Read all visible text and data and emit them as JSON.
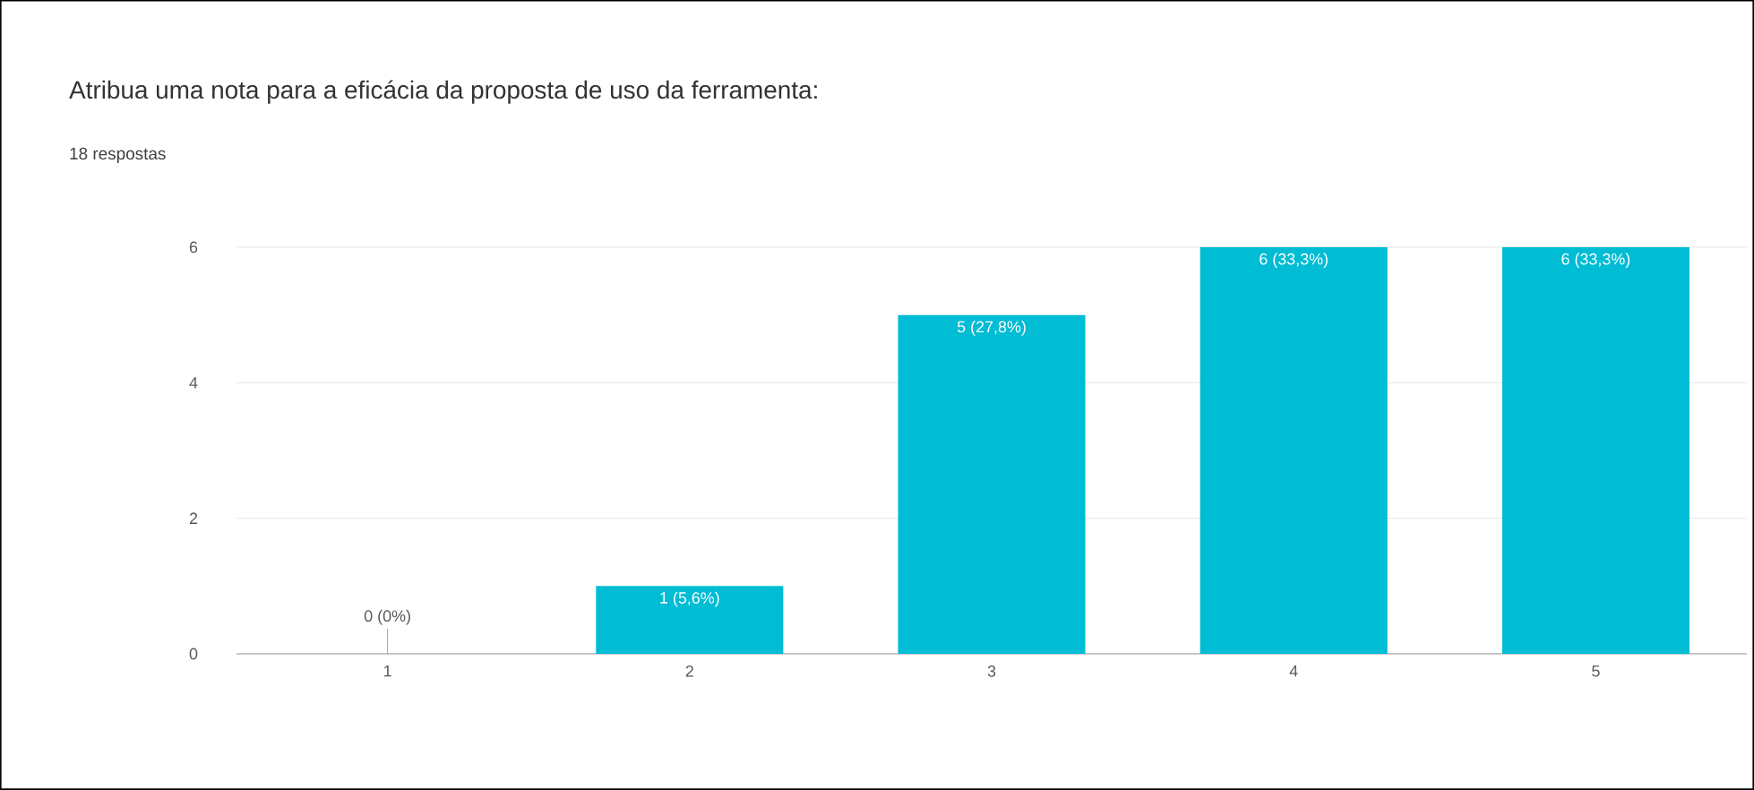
{
  "chart_data": {
    "type": "bar",
    "title": "Atribua uma nota para a eficácia da proposta de uso da ferramenta:",
    "subtitle": "18 respostas",
    "categories": [
      "1",
      "2",
      "3",
      "4",
      "5"
    ],
    "values": [
      0,
      1,
      5,
      6,
      6
    ],
    "value_labels": [
      "0 (0%)",
      "1 (5,6%)",
      "5 (27,8%)",
      "6 (33,3%)",
      "6 (33,3%)"
    ],
    "color": "#00bcd4",
    "ylim": [
      0,
      6
    ],
    "yticks": [
      0,
      2,
      4,
      6
    ],
    "grid": "y"
  }
}
